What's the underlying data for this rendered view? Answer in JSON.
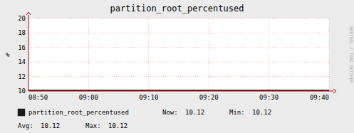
{
  "chart_data": {
    "type": "area",
    "title": "partition_root_percentused",
    "y_label": "%",
    "x": [
      "08:50",
      "09:40"
    ],
    "xlim": [
      "08:50",
      "09:40"
    ],
    "xticks": [
      "08:50",
      "09:00",
      "09:10",
      "09:20",
      "09:30",
      "09:40"
    ],
    "ylim": [
      10,
      20
    ],
    "yticks": [
      10,
      12,
      14,
      16,
      18,
      20
    ],
    "grid": true,
    "legend": "bottom",
    "series": [
      {
        "name": "partition_root_percentused",
        "color": "#1a1a1a",
        "values": [
          10.12,
          10.12
        ],
        "stats": [
          {
            "label": "Now:",
            "value": 10.12
          },
          {
            "label": "Min:",
            "value": 10.12
          },
          {
            "label": "Avg:",
            "value": 10.12
          },
          {
            "label": "Max:",
            "value": 10.12
          }
        ]
      }
    ],
    "annotations": [
      "RRDTOOL / TOBI OETIKER"
    ]
  }
}
